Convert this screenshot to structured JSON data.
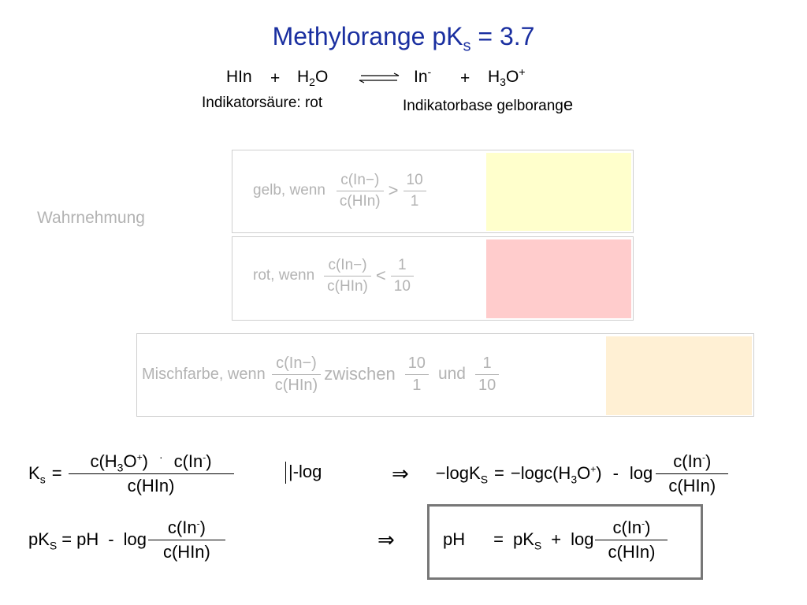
{
  "title": {
    "main": "Methylorange pK",
    "sub": "s",
    "rest": " = 3.7"
  },
  "reaction": {
    "hin": "HIn",
    "plus1": "+",
    "h2o_h": "H",
    "h2o_sub": "2",
    "h2o_o": "O",
    "in_minus": "In",
    "in_minus_sup": "-",
    "plus2": "+",
    "h3o_h": "H",
    "h3o_sub": "3",
    "h3o_o": "O",
    "h3o_sup": "+",
    "acid_label": "Indikatorsäure: rot",
    "base_label": "Indikatorbase gelborang",
    "base_label_last": "e"
  },
  "perception_label": "Wahrnehmung",
  "yellow_row": {
    "text": "gelb, wenn",
    "num": "c(In−)",
    "den": "c(HIn)",
    "rel": ">",
    "rnum": "10",
    "rden": "1"
  },
  "red_row": {
    "text": "rot, wenn",
    "num": "c(In−)",
    "den": "c(HIn)",
    "rel": "<",
    "rnum": "1",
    "rden": "10"
  },
  "mix_row": {
    "text": "Mischfarbe, wenn",
    "num": "c(In−)",
    "den": "c(HIn)",
    "between": "zwischen",
    "a_num": "10",
    "a_den": "1",
    "and": "und",
    "b_num": "1",
    "b_den": "10"
  },
  "colors": {
    "yellow": "#ffffcc",
    "red": "#ffcccc",
    "orange": "#fff0d4",
    "title": "#1a2fa0"
  },
  "eq1": {
    "lhs": "K",
    "lhs_sub": "s",
    "eq": "=",
    "num_a": "c(H",
    "num_a_sub": "3",
    "num_a_o": "O",
    "num_a_sup": "+",
    "num_a_close": ")",
    "dot": "·",
    "num_b": "c(In",
    "num_b_sup": "-",
    "num_b_close": ")",
    "den": "c(HIn)",
    "op": "|-log"
  },
  "eq1_right": {
    "arrow": "⇒",
    "lhs": "−logK",
    "lhs_sub": "S",
    "eq": "=",
    "mid": "−logc(H",
    "mid_sub": "3",
    "mid_o": "O",
    "mid_sup": "+",
    "mid_close": ")",
    "minus": "-",
    "log": "log",
    "num": "c(In",
    "num_sup": "-",
    "num_close": ")",
    "den": "c(HIn)"
  },
  "eq2": {
    "lhs": "pK",
    "lhs_sub": "S",
    "eq": "=",
    "ph": "pH",
    "minus": "-",
    "log": "log",
    "num": "c(In",
    "num_sup": "-",
    "num_close": ")",
    "den": "c(HIn)"
  },
  "eq2_right": {
    "arrow": "⇒",
    "ph": "pH",
    "eq": "=",
    "pk": "pK",
    "pk_sub": "S",
    "plus": "+",
    "log": "log",
    "num": "c(In",
    "num_sup": "-",
    "num_close": ")",
    "den": "c(HIn)"
  }
}
